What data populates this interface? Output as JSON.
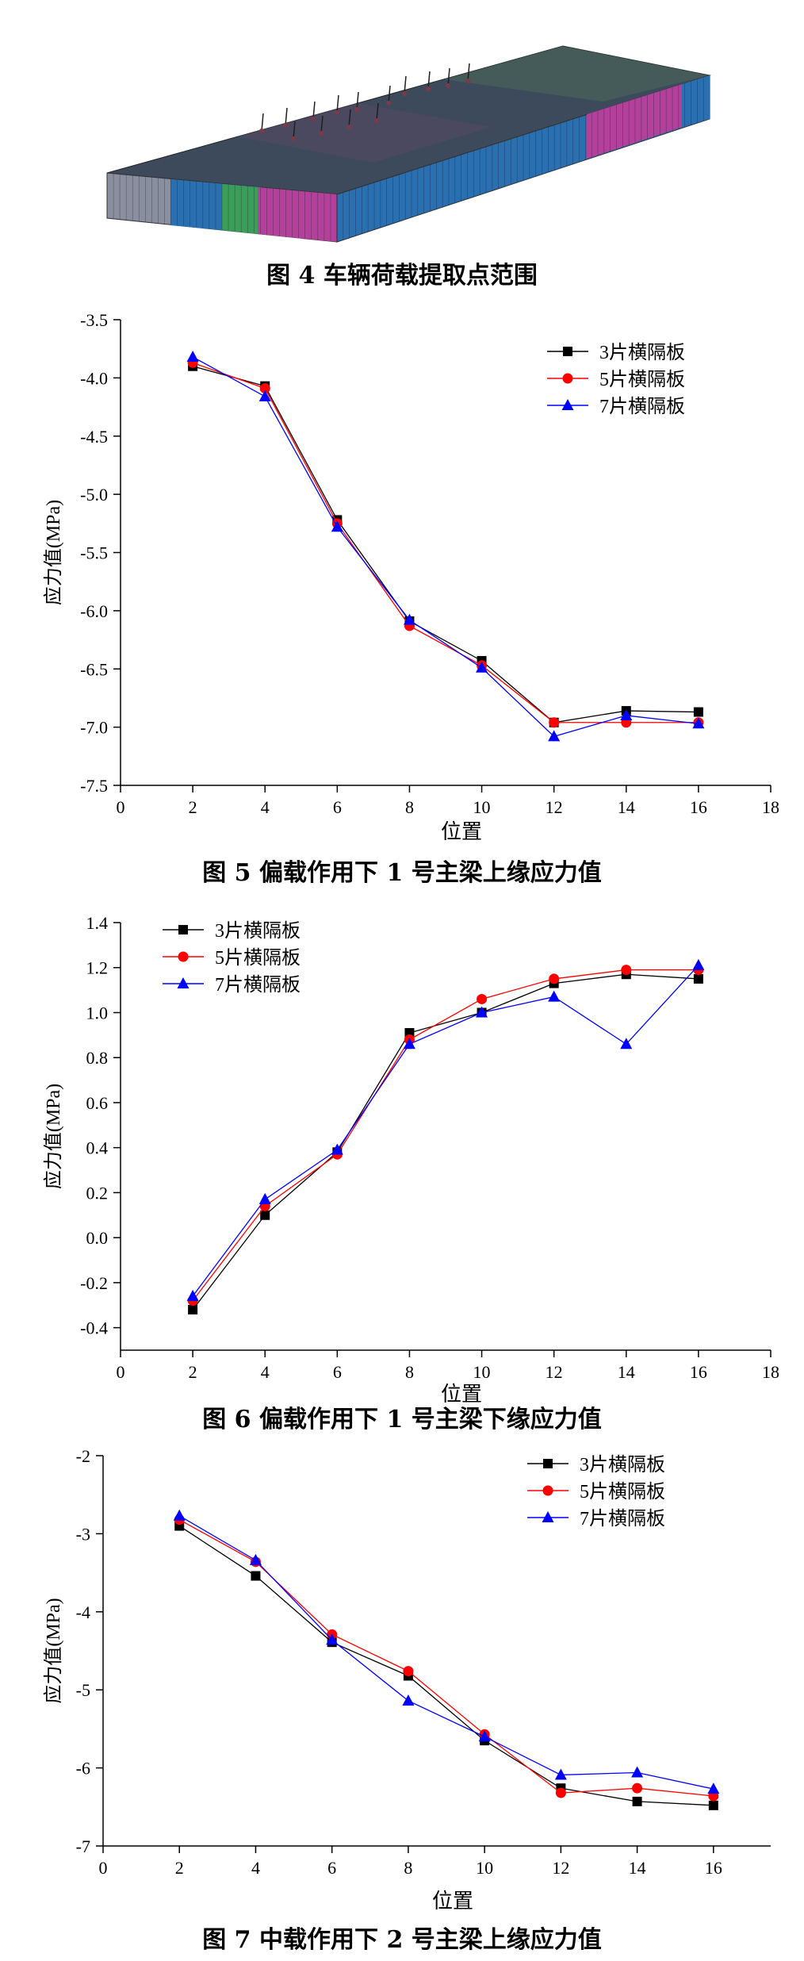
{
  "captions": {
    "fig4": "图 4  车辆荷载提取点范围",
    "fig5": "图 5  偏载作用下 1 号主梁上缘应力值",
    "fig6": "图 6  偏载作用下 1 号主梁下缘应力值",
    "fig7": "图 7  中载作用下 2 号主梁上缘应力值"
  },
  "model_image": {
    "colors": [
      "#3c4a5c",
      "#2a6fb0",
      "#b3409a",
      "#3a9e5a",
      "#8a8fa0",
      "#7a3a46"
    ]
  },
  "series_colors": [
    "#000000",
    "#ff0000",
    "#0000ff"
  ],
  "chart_data": [
    {
      "type": "line",
      "xlabel": "位置",
      "ylabel": "应力值(MPa)",
      "xlim": [
        0,
        18
      ],
      "ylim": [
        -7.5,
        -3.5
      ],
      "xticks": [
        0,
        2,
        4,
        6,
        8,
        10,
        12,
        14,
        16,
        18
      ],
      "yticks": [
        -7.5,
        -7.0,
        -6.5,
        -6.0,
        -5.5,
        -5.0,
        -4.5,
        -4.0,
        -3.5
      ],
      "ytick_labels": [
        "-7.5",
        "-7.0",
        "-6.5",
        "-6.0",
        "-5.5",
        "-5.0",
        "-4.5",
        "-4.0",
        "-3.5"
      ],
      "legend_position": "top-right",
      "x": [
        2,
        4,
        6,
        8,
        10,
        12,
        14,
        16
      ],
      "series": [
        {
          "name": "3片横隔板",
          "marker": "square",
          "values": [
            -3.9,
            -4.07,
            -5.22,
            -6.09,
            -6.43,
            -6.96,
            -6.86,
            -6.87
          ]
        },
        {
          "name": "5片横隔板",
          "marker": "circle",
          "values": [
            -3.87,
            -4.09,
            -5.25,
            -6.13,
            -6.47,
            -6.96,
            -6.96,
            -6.96
          ]
        },
        {
          "name": "7片横隔板",
          "marker": "triangle",
          "values": [
            -3.82,
            -4.16,
            -5.28,
            -6.08,
            -6.49,
            -7.08,
            -6.9,
            -6.97
          ]
        }
      ]
    },
    {
      "type": "line",
      "xlabel": "位置",
      "ylabel": "应力值(MPa)",
      "xlim": [
        0,
        18
      ],
      "ylim": [
        -0.5,
        1.4
      ],
      "xticks": [
        0,
        2,
        4,
        6,
        8,
        10,
        12,
        14,
        16,
        18
      ],
      "yticks": [
        -0.4,
        -0.2,
        0.0,
        0.2,
        0.4,
        0.6,
        0.8,
        1.0,
        1.2,
        1.4
      ],
      "ytick_labels": [
        "-0.4",
        "-0.2",
        "0.0",
        "0.2",
        "0.4",
        "0.6",
        "0.8",
        "1.0",
        "1.2",
        "1.4"
      ],
      "legend_position": "top-left",
      "x": [
        2,
        4,
        6,
        8,
        10,
        12,
        14,
        16
      ],
      "series": [
        {
          "name": "3片横隔板",
          "marker": "square",
          "values": [
            -0.32,
            0.1,
            0.38,
            0.91,
            1.0,
            1.13,
            1.17,
            1.15
          ]
        },
        {
          "name": "5片横隔板",
          "marker": "circle",
          "values": [
            -0.28,
            0.14,
            0.37,
            0.88,
            1.06,
            1.15,
            1.19,
            1.19
          ]
        },
        {
          "name": "7片横隔板",
          "marker": "triangle",
          "values": [
            -0.26,
            0.17,
            0.39,
            0.86,
            1.0,
            1.07,
            0.86,
            1.21
          ]
        }
      ]
    },
    {
      "type": "line",
      "xlabel": "位置",
      "ylabel": "应力值(MPa)",
      "xlim": [
        0,
        17.5
      ],
      "ylim": [
        -7,
        -2
      ],
      "xticks": [
        0,
        2,
        4,
        6,
        8,
        10,
        12,
        14,
        16
      ],
      "yticks": [
        -7,
        -6,
        -5,
        -4,
        -3,
        -2
      ],
      "ytick_labels": [
        "-7",
        "-6",
        "-5",
        "-4",
        "-3",
        "-2"
      ],
      "legend_position": "top-right",
      "x": [
        2,
        4,
        6,
        8,
        10,
        12,
        14,
        16
      ],
      "series": [
        {
          "name": "3片横隔板",
          "marker": "square",
          "values": [
            -2.9,
            -3.54,
            -4.39,
            -4.82,
            -5.65,
            -6.26,
            -6.43,
            -6.48
          ]
        },
        {
          "name": "5片横隔板",
          "marker": "circle",
          "values": [
            -2.82,
            -3.36,
            -4.29,
            -4.76,
            -5.57,
            -6.32,
            -6.26,
            -6.36
          ]
        },
        {
          "name": "7片横隔板",
          "marker": "triangle",
          "values": [
            -2.77,
            -3.34,
            -4.36,
            -5.14,
            -5.6,
            -6.09,
            -6.06,
            -6.27
          ]
        }
      ]
    }
  ]
}
